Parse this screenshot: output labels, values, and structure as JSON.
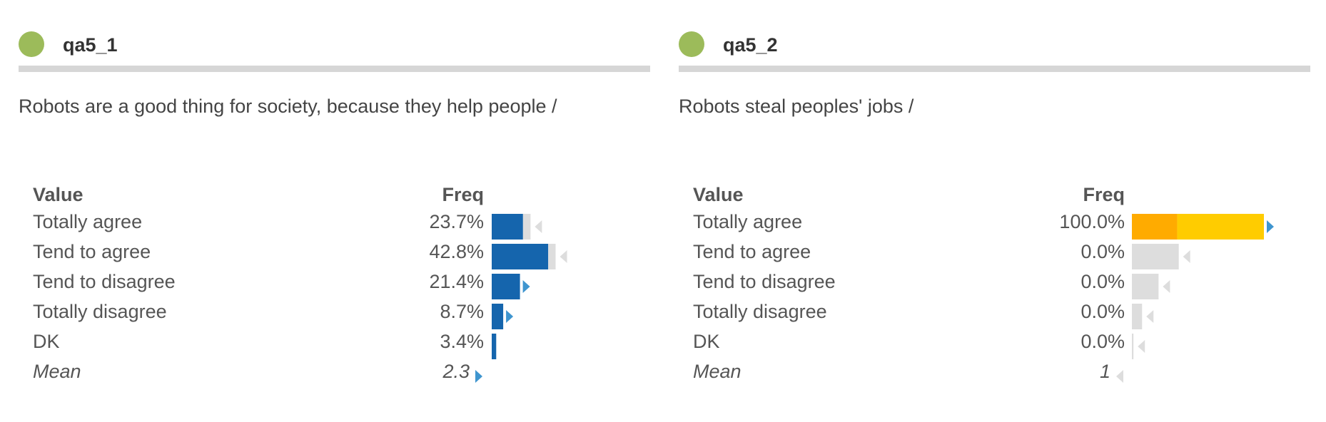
{
  "chart_data": [
    {
      "type": "bar",
      "name": "qa5_1",
      "title": "Robots are a good thing for society, because they help people /",
      "header_color": "#9cbb5a",
      "column_headers": {
        "value": "Value",
        "freq": "Freq"
      },
      "categories": [
        "Totally agree",
        "Tend to agree",
        "Tend to disagree",
        "Totally disagree",
        "DK"
      ],
      "value_labels": [
        "23.7%",
        "42.8%",
        "21.4%",
        "8.7%",
        "3.4%"
      ],
      "values": [
        23.7,
        42.8,
        21.4,
        8.7,
        3.4
      ],
      "comparison": [
        29.4,
        48.4,
        21.4,
        8.7,
        3.4
      ],
      "direction": [
        "down",
        "down",
        "up",
        "up",
        "none"
      ],
      "base_color": "#1565ad",
      "excess_color": "#4a9ee0",
      "deficit_color": "#dddddd",
      "mean": {
        "label": "Mean",
        "value": "2.3",
        "direction": "up"
      }
    },
    {
      "type": "bar",
      "name": "qa5_2",
      "title": "Robots steal peoples' jobs /",
      "header_color": "#9cbb5a",
      "column_headers": {
        "value": "Value",
        "freq": "Freq"
      },
      "categories": [
        "Totally agree",
        "Tend to agree",
        "Tend to disagree",
        "Totally disagree",
        "DK"
      ],
      "value_labels": [
        "100.0%",
        "0.0%",
        "0.0%",
        "0.0%",
        "0.0%"
      ],
      "values": [
        100.0,
        0.0,
        0.0,
        0.0,
        0.0
      ],
      "comparison": [
        34.3,
        35.5,
        20.2,
        7.7,
        1.2
      ],
      "direction": [
        "up",
        "down",
        "down",
        "down",
        "down"
      ],
      "base_color": "#ffab00",
      "excess_color": "#ffcc00",
      "deficit_color": "#dddddd",
      "mean": {
        "label": "Mean",
        "value": "1",
        "direction": "down"
      }
    }
  ],
  "colors": {
    "arrow_up": "#3f95cf",
    "arrow_down": "#dddddd",
    "rule": "#d6d6d6"
  }
}
